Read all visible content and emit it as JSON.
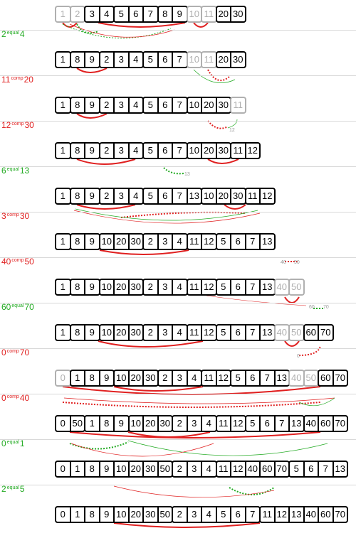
{
  "rows": [
    {
      "cells": [
        {
          "v": "1",
          "g": 1
        },
        {
          "v": "2",
          "g": 1
        },
        {
          "v": "3"
        },
        {
          "v": "4"
        },
        {
          "v": "5"
        },
        {
          "v": "6"
        },
        {
          "v": "7"
        },
        {
          "v": "8"
        },
        {
          "v": "9"
        },
        {
          "v": "10",
          "g": 1
        },
        {
          "v": "11",
          "g": 1
        },
        {
          "v": "20"
        },
        {
          "v": "30"
        }
      ],
      "groups": [
        [
          0,
          0,
          1
        ],
        [
          1,
          1,
          1
        ],
        [
          2,
          3,
          0
        ],
        [
          4,
          6,
          0
        ],
        [
          7,
          8,
          0
        ],
        [
          9,
          9,
          1
        ],
        [
          10,
          10,
          1
        ],
        [
          11,
          12,
          0
        ]
      ]
    },
    {
      "cells": [
        {
          "v": "1"
        },
        {
          "v": "8"
        },
        {
          "v": "9"
        },
        {
          "v": "2"
        },
        {
          "v": "3"
        },
        {
          "v": "4"
        },
        {
          "v": "5"
        },
        {
          "v": "6"
        },
        {
          "v": "7"
        },
        {
          "v": "10",
          "g": 1
        },
        {
          "v": "11",
          "g": 1
        },
        {
          "v": "20"
        },
        {
          "v": "30"
        }
      ],
      "groups": [
        [
          0,
          0,
          0
        ],
        [
          1,
          2,
          0
        ],
        [
          3,
          5,
          0
        ],
        [
          6,
          8,
          0
        ],
        [
          9,
          9,
          1
        ],
        [
          10,
          10,
          1
        ],
        [
          11,
          12,
          0
        ]
      ]
    },
    {
      "cells": [
        {
          "v": "1"
        },
        {
          "v": "8"
        },
        {
          "v": "9"
        },
        {
          "v": "2"
        },
        {
          "v": "3"
        },
        {
          "v": "4"
        },
        {
          "v": "5"
        },
        {
          "v": "6"
        },
        {
          "v": "7"
        },
        {
          "v": "10"
        },
        {
          "v": "20"
        },
        {
          "v": "30"
        },
        {
          "v": "11",
          "g": 1
        }
      ],
      "groups": [
        [
          0,
          0,
          0
        ],
        [
          1,
          2,
          0
        ],
        [
          3,
          5,
          0
        ],
        [
          6,
          8,
          0
        ],
        [
          9,
          11,
          0
        ],
        [
          12,
          12,
          1
        ]
      ]
    },
    {
      "cells": [
        {
          "v": "1"
        },
        {
          "v": "8"
        },
        {
          "v": "9"
        },
        {
          "v": "2"
        },
        {
          "v": "3"
        },
        {
          "v": "4"
        },
        {
          "v": "5"
        },
        {
          "v": "6"
        },
        {
          "v": "7"
        },
        {
          "v": "10"
        },
        {
          "v": "20"
        },
        {
          "v": "30"
        },
        {
          "v": "11"
        },
        {
          "v": "12"
        }
      ],
      "groups": [
        [
          0,
          0,
          0
        ],
        [
          1,
          2,
          0
        ],
        [
          3,
          5,
          0
        ],
        [
          6,
          8,
          0
        ],
        [
          9,
          11,
          0
        ],
        [
          12,
          13,
          0
        ]
      ]
    },
    {
      "cells": [
        {
          "v": "1"
        },
        {
          "v": "8"
        },
        {
          "v": "9"
        },
        {
          "v": "2"
        },
        {
          "v": "3"
        },
        {
          "v": "4"
        },
        {
          "v": "5"
        },
        {
          "v": "6"
        },
        {
          "v": "7"
        },
        {
          "v": "13"
        },
        {
          "v": "10"
        },
        {
          "v": "20"
        },
        {
          "v": "30"
        },
        {
          "v": "11"
        },
        {
          "v": "12"
        }
      ],
      "groups": [
        [
          0,
          0,
          0
        ],
        [
          1,
          2,
          0
        ],
        [
          3,
          5,
          0
        ],
        [
          6,
          9,
          0
        ],
        [
          10,
          12,
          0
        ],
        [
          13,
          14,
          0
        ]
      ]
    },
    {
      "cells": [
        {
          "v": "1"
        },
        {
          "v": "8"
        },
        {
          "v": "9"
        },
        {
          "v": "10"
        },
        {
          "v": "20"
        },
        {
          "v": "30"
        },
        {
          "v": "2"
        },
        {
          "v": "3"
        },
        {
          "v": "4"
        },
        {
          "v": "11"
        },
        {
          "v": "12"
        },
        {
          "v": "5"
        },
        {
          "v": "6"
        },
        {
          "v": "7"
        },
        {
          "v": "13"
        }
      ],
      "groups": [
        [
          0,
          0,
          0
        ],
        [
          1,
          2,
          0
        ],
        [
          3,
          5,
          0
        ],
        [
          6,
          8,
          0
        ],
        [
          9,
          10,
          0
        ],
        [
          11,
          14,
          0
        ]
      ]
    },
    {
      "cells": [
        {
          "v": "1"
        },
        {
          "v": "8"
        },
        {
          "v": "9"
        },
        {
          "v": "10"
        },
        {
          "v": "20"
        },
        {
          "v": "30"
        },
        {
          "v": "2"
        },
        {
          "v": "3"
        },
        {
          "v": "4"
        },
        {
          "v": "11"
        },
        {
          "v": "12"
        },
        {
          "v": "5"
        },
        {
          "v": "6"
        },
        {
          "v": "7"
        },
        {
          "v": "13"
        },
        {
          "v": "40",
          "g": 1
        },
        {
          "v": "50",
          "g": 1
        }
      ],
      "groups": [
        [
          0,
          0,
          0
        ],
        [
          1,
          2,
          0
        ],
        [
          3,
          5,
          0
        ],
        [
          6,
          8,
          0
        ],
        [
          9,
          10,
          0
        ],
        [
          11,
          14,
          0
        ],
        [
          15,
          15,
          1
        ],
        [
          16,
          16,
          1
        ]
      ]
    },
    {
      "cells": [
        {
          "v": "1"
        },
        {
          "v": "8"
        },
        {
          "v": "9"
        },
        {
          "v": "10"
        },
        {
          "v": "20"
        },
        {
          "v": "30"
        },
        {
          "v": "2"
        },
        {
          "v": "3"
        },
        {
          "v": "4"
        },
        {
          "v": "11"
        },
        {
          "v": "12"
        },
        {
          "v": "5"
        },
        {
          "v": "6"
        },
        {
          "v": "7"
        },
        {
          "v": "13"
        },
        {
          "v": "40",
          "g": 1
        },
        {
          "v": "50",
          "g": 1
        },
        {
          "v": "60"
        },
        {
          "v": "70"
        }
      ],
      "groups": [
        [
          0,
          0,
          0
        ],
        [
          1,
          2,
          0
        ],
        [
          3,
          5,
          0
        ],
        [
          6,
          8,
          0
        ],
        [
          9,
          10,
          0
        ],
        [
          11,
          14,
          0
        ],
        [
          15,
          15,
          1
        ],
        [
          16,
          16,
          1
        ],
        [
          17,
          18,
          0
        ]
      ]
    },
    {
      "cells": [
        {
          "v": "0",
          "g": 1
        },
        {
          "v": "1"
        },
        {
          "v": "8"
        },
        {
          "v": "9"
        },
        {
          "v": "10"
        },
        {
          "v": "20"
        },
        {
          "v": "30"
        },
        {
          "v": "2"
        },
        {
          "v": "3"
        },
        {
          "v": "4"
        },
        {
          "v": "11"
        },
        {
          "v": "12"
        },
        {
          "v": "5"
        },
        {
          "v": "6"
        },
        {
          "v": "7"
        },
        {
          "v": "13"
        },
        {
          "v": "40",
          "g": 1
        },
        {
          "v": "50",
          "g": 1
        },
        {
          "v": "60"
        },
        {
          "v": "70"
        }
      ],
      "groups": [
        [
          0,
          0,
          1
        ],
        [
          1,
          3,
          0
        ],
        [
          4,
          6,
          0
        ],
        [
          7,
          9,
          0
        ],
        [
          10,
          11,
          0
        ],
        [
          12,
          15,
          0
        ],
        [
          16,
          16,
          1
        ],
        [
          17,
          17,
          1
        ],
        [
          18,
          19,
          0
        ]
      ]
    },
    {
      "cells": [
        {
          "v": "0"
        },
        {
          "v": "50"
        },
        {
          "v": "1"
        },
        {
          "v": "8"
        },
        {
          "v": "9"
        },
        {
          "v": "10"
        },
        {
          "v": "20"
        },
        {
          "v": "30"
        },
        {
          "v": "2"
        },
        {
          "v": "3"
        },
        {
          "v": "4"
        },
        {
          "v": "11"
        },
        {
          "v": "12"
        },
        {
          "v": "5"
        },
        {
          "v": "6"
        },
        {
          "v": "7"
        },
        {
          "v": "13"
        },
        {
          "v": "40"
        },
        {
          "v": "60"
        },
        {
          "v": "70"
        }
      ],
      "groups": [
        [
          0,
          1,
          0
        ],
        [
          2,
          4,
          0
        ],
        [
          5,
          7,
          0
        ],
        [
          8,
          10,
          0
        ],
        [
          11,
          12,
          0
        ],
        [
          13,
          16,
          0
        ],
        [
          17,
          19,
          0
        ]
      ]
    },
    {
      "cells": [
        {
          "v": "0"
        },
        {
          "v": "1"
        },
        {
          "v": "8"
        },
        {
          "v": "9"
        },
        {
          "v": "10"
        },
        {
          "v": "20"
        },
        {
          "v": "30"
        },
        {
          "v": "50"
        },
        {
          "v": "2"
        },
        {
          "v": "3"
        },
        {
          "v": "4"
        },
        {
          "v": "11"
        },
        {
          "v": "12"
        },
        {
          "v": "40"
        },
        {
          "v": "60"
        },
        {
          "v": "70"
        },
        {
          "v": "5"
        },
        {
          "v": "6"
        },
        {
          "v": "7"
        },
        {
          "v": "13"
        }
      ],
      "groups": [
        [
          0,
          7,
          0
        ],
        [
          8,
          10,
          0
        ],
        [
          11,
          15,
          0
        ],
        [
          16,
          19,
          0
        ]
      ]
    },
    {
      "cells": [
        {
          "v": "0"
        },
        {
          "v": "1"
        },
        {
          "v": "8"
        },
        {
          "v": "9"
        },
        {
          "v": "10"
        },
        {
          "v": "20"
        },
        {
          "v": "30"
        },
        {
          "v": "50"
        },
        {
          "v": "2"
        },
        {
          "v": "3"
        },
        {
          "v": "4"
        },
        {
          "v": "5"
        },
        {
          "v": "6"
        },
        {
          "v": "7"
        },
        {
          "v": "11"
        },
        {
          "v": "12"
        },
        {
          "v": "13"
        },
        {
          "v": "40"
        },
        {
          "v": "60"
        },
        {
          "v": "70"
        }
      ],
      "groups": [
        [
          0,
          7,
          0
        ],
        [
          8,
          13,
          0
        ],
        [
          14,
          19,
          0
        ]
      ]
    }
  ],
  "steps": [
    {
      "a": "2",
      "op": "equal",
      "b": "4",
      "kind": "green"
    },
    {
      "a": "11",
      "op": "comp",
      "b": "20",
      "kind": "red"
    },
    {
      "a": "12",
      "op": "comp",
      "b": "30",
      "kind": "red"
    },
    {
      "a": "6",
      "op": "equal",
      "b": "13",
      "kind": "green"
    },
    {
      "a": "3",
      "op": "comp",
      "b": "30",
      "kind": "red"
    },
    {
      "a": "40",
      "op": "comp",
      "b": "50",
      "kind": "red"
    },
    {
      "a": "60",
      "op": "equal",
      "b": "70",
      "kind": "green"
    },
    {
      "a": "0",
      "op": "comp",
      "b": "70",
      "kind": "red"
    },
    {
      "a": "0",
      "op": "comp",
      "b": "40",
      "kind": "red"
    },
    {
      "a": "0",
      "op": "equal",
      "b": "1",
      "kind": "green"
    },
    {
      "a": "2",
      "op": "equal",
      "b": "5",
      "kind": "green"
    }
  ],
  "annotations": [
    {
      "text": "12"
    },
    {
      "text": "13"
    },
    {
      "text": "40"
    },
    {
      "text": "50"
    },
    {
      "text": "60"
    },
    {
      "text": "70"
    },
    {
      "text": "0"
    }
  ],
  "colors": {
    "red": "#e02020",
    "green": "#22aa22",
    "gray": "#b0b0b0",
    "black": "#000000"
  }
}
